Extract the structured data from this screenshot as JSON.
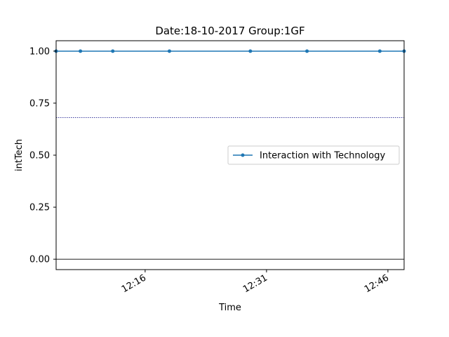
{
  "chart_data": {
    "type": "line",
    "title": "Date:18-10-2017  Group:1GF",
    "xlabel": "Time",
    "ylabel": "intTech",
    "xlim": [
      "12:05",
      "12:48"
    ],
    "ylim": [
      -0.05,
      1.05
    ],
    "x_ticks": [
      "12:16",
      "12:31",
      "12:46"
    ],
    "y_ticks": [
      "0.00",
      "0.25",
      "0.50",
      "0.75",
      "1.00"
    ],
    "grid": false,
    "legend_position": "center-right",
    "series": [
      {
        "name": "Interaction with Technology",
        "color": "#1f77b4",
        "marker": "dot",
        "x": [
          "12:05",
          "12:08",
          "12:12",
          "12:19",
          "12:29",
          "12:36",
          "12:45",
          "12:48"
        ],
        "y": [
          1.0,
          1.0,
          1.0,
          1.0,
          1.0,
          1.0,
          1.0,
          1.0
        ]
      }
    ],
    "reference_lines": [
      {
        "y": 0.68,
        "style": "dotted",
        "color": "#000080"
      },
      {
        "y": 0.0,
        "style": "solid",
        "color": "#000000"
      }
    ]
  }
}
